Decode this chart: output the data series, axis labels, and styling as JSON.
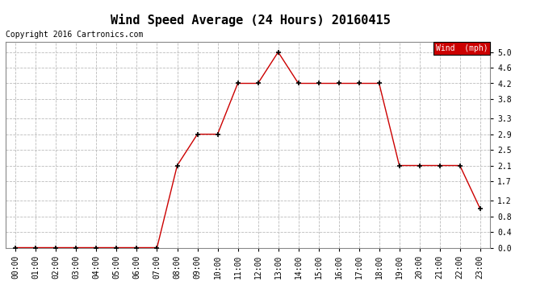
{
  "title": "Wind Speed Average (24 Hours) 20160415",
  "copyright": "Copyright 2016 Cartronics.com",
  "legend_label": "Wind  (mph)",
  "hours": [
    "00:00",
    "01:00",
    "02:00",
    "03:00",
    "04:00",
    "05:00",
    "06:00",
    "07:00",
    "08:00",
    "09:00",
    "10:00",
    "11:00",
    "12:00",
    "13:00",
    "14:00",
    "15:00",
    "16:00",
    "17:00",
    "18:00",
    "19:00",
    "20:00",
    "21:00",
    "22:00",
    "23:00"
  ],
  "values": [
    0.0,
    0.0,
    0.0,
    0.0,
    0.0,
    0.0,
    0.0,
    0.0,
    2.1,
    2.9,
    2.9,
    4.2,
    4.2,
    5.0,
    4.2,
    4.2,
    4.2,
    4.2,
    4.2,
    2.1,
    2.1,
    2.1,
    2.1,
    1.0
  ],
  "line_color": "#cc0000",
  "marker": "+",
  "marker_size": 5,
  "bg_color": "#ffffff",
  "grid_color": "#bbbbbb",
  "ylim": [
    0.0,
    5.25
  ],
  "yticks": [
    0.0,
    0.4,
    0.8,
    1.2,
    1.7,
    2.1,
    2.5,
    2.9,
    3.3,
    3.8,
    4.2,
    4.6,
    5.0
  ],
  "legend_bg": "#cc0000",
  "legend_text_color": "#ffffff",
  "title_fontsize": 11,
  "copyright_fontsize": 7,
  "tick_fontsize": 7,
  "ylabel_fontsize": 7,
  "marker_color": "#000000",
  "marker_edgewidth": 1.2
}
